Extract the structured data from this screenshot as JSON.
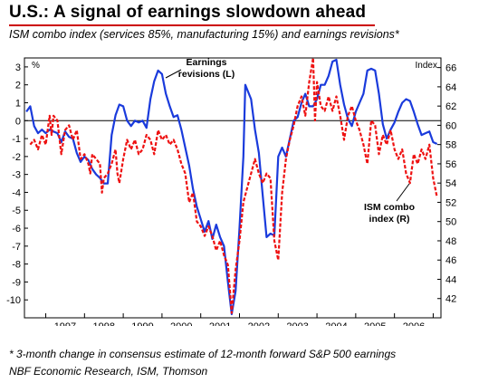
{
  "header": {
    "title": "U.S.: A signal of earnings slowdown ahead",
    "subtitle": "ISM combo index (services 85%, manufacturing 15%) and earnings revisions*"
  },
  "footer": {
    "footnote": "* 3-month change in consensus estimate of 12-month forward S&P 500 earnings",
    "source": "NBF Economic Research, ISM, Thomson"
  },
  "chart_data": {
    "type": "line",
    "left_unit": "%",
    "right_unit": "Index",
    "x_ticks": [
      "1997",
      "1998",
      "1999",
      "2000",
      "2001",
      "2002",
      "2003",
      "2004",
      "2005",
      "2006"
    ],
    "y_left": {
      "min": -11,
      "max": 3.5,
      "ticks": [
        "3",
        "2",
        "1",
        "0",
        "-1",
        "-2",
        "-3",
        "-4",
        "-5",
        "-6",
        "-7",
        "-8",
        "-9",
        "-10"
      ]
    },
    "y_right": {
      "min": 40,
      "max": 67,
      "ticks": [
        "66",
        "64",
        "62",
        "60",
        "58",
        "56",
        "54",
        "52",
        "50",
        "48",
        "46",
        "44",
        "42"
      ]
    },
    "grid": false,
    "annotations": [
      {
        "text": [
          "Earnings",
          "revisions (L)"
        ],
        "series": 0
      },
      {
        "text": [
          "ISM combo",
          "index (R)"
        ],
        "series": 1
      }
    ],
    "series": [
      {
        "name": "Earnings revisions (L)",
        "axis": "left",
        "color": "#1a3bdc",
        "style": "solid",
        "points": [
          [
            1996.5,
            0.5
          ],
          [
            1996.6,
            0.8
          ],
          [
            1996.7,
            -0.3
          ],
          [
            1996.8,
            -0.7
          ],
          [
            1996.9,
            -0.5
          ],
          [
            1997.0,
            -0.7
          ],
          [
            1997.1,
            -0.5
          ],
          [
            1997.2,
            -0.6
          ],
          [
            1997.3,
            -0.7
          ],
          [
            1997.4,
            -1.2
          ],
          [
            1997.5,
            -0.6
          ],
          [
            1997.6,
            -0.9
          ],
          [
            1997.7,
            -1.0
          ],
          [
            1997.8,
            -1.8
          ],
          [
            1997.9,
            -2.3
          ],
          [
            1998.0,
            -2.0
          ],
          [
            1998.1,
            -2.2
          ],
          [
            1998.2,
            -2.7
          ],
          [
            1998.3,
            -3.0
          ],
          [
            1998.4,
            -3.2
          ],
          [
            1998.5,
            -3.5
          ],
          [
            1998.6,
            -3.5
          ],
          [
            1998.7,
            -0.8
          ],
          [
            1998.8,
            0.3
          ],
          [
            1998.9,
            0.9
          ],
          [
            1999.0,
            0.8
          ],
          [
            1999.1,
            0.0
          ],
          [
            1999.2,
            -0.3
          ],
          [
            1999.3,
            0.0
          ],
          [
            1999.4,
            -0.1
          ],
          [
            1999.5,
            0.0
          ],
          [
            1999.6,
            -0.4
          ],
          [
            1999.7,
            1.2
          ],
          [
            1999.8,
            2.2
          ],
          [
            1999.9,
            2.8
          ],
          [
            2000.0,
            2.6
          ],
          [
            2000.1,
            1.5
          ],
          [
            2000.2,
            0.8
          ],
          [
            2000.3,
            0.2
          ],
          [
            2000.4,
            0.3
          ],
          [
            2000.5,
            -0.5
          ],
          [
            2000.6,
            -1.5
          ],
          [
            2000.7,
            -2.5
          ],
          [
            2000.8,
            -3.8
          ],
          [
            2000.9,
            -4.8
          ],
          [
            2001.0,
            -5.5
          ],
          [
            2001.1,
            -6.2
          ],
          [
            2001.2,
            -5.6
          ],
          [
            2001.3,
            -6.6
          ],
          [
            2001.4,
            -5.8
          ],
          [
            2001.5,
            -6.5
          ],
          [
            2001.6,
            -7.0
          ],
          [
            2001.7,
            -9.0
          ],
          [
            2001.8,
            -10.8
          ],
          [
            2001.9,
            -9.5
          ],
          [
            2002.0,
            -6.0
          ],
          [
            2002.1,
            -2.0
          ],
          [
            2002.15,
            2.0
          ],
          [
            2002.3,
            1.2
          ],
          [
            2002.4,
            -0.5
          ],
          [
            2002.5,
            -1.8
          ],
          [
            2002.6,
            -4.2
          ],
          [
            2002.7,
            -6.5
          ],
          [
            2002.8,
            -6.3
          ],
          [
            2002.9,
            -6.4
          ],
          [
            2003.0,
            -2.0
          ],
          [
            2003.1,
            -1.5
          ],
          [
            2003.2,
            -2.0
          ],
          [
            2003.3,
            -1.0
          ],
          [
            2003.4,
            0.0
          ],
          [
            2003.5,
            0.2
          ],
          [
            2003.6,
            1.0
          ],
          [
            2003.7,
            1.5
          ],
          [
            2003.8,
            0.8
          ],
          [
            2003.9,
            0.8
          ],
          [
            2004.0,
            1.2
          ],
          [
            2004.1,
            2.0
          ],
          [
            2004.2,
            2.0
          ],
          [
            2004.3,
            2.5
          ],
          [
            2004.4,
            3.3
          ],
          [
            2004.5,
            3.4
          ],
          [
            2004.6,
            2.0
          ],
          [
            2004.7,
            0.9
          ],
          [
            2004.8,
            0.1
          ],
          [
            2004.9,
            -0.3
          ],
          [
            2005.0,
            0.5
          ],
          [
            2005.1,
            1.0
          ],
          [
            2005.2,
            1.5
          ],
          [
            2005.3,
            2.8
          ],
          [
            2005.4,
            2.9
          ],
          [
            2005.5,
            2.8
          ],
          [
            2005.6,
            1.5
          ],
          [
            2005.7,
            -0.2
          ],
          [
            2005.8,
            -1.0
          ],
          [
            2005.9,
            -0.5
          ],
          [
            2006.0,
            -0.1
          ],
          [
            2006.1,
            0.5
          ],
          [
            2006.2,
            1.0
          ],
          [
            2006.3,
            1.2
          ],
          [
            2006.4,
            1.1
          ],
          [
            2006.5,
            0.5
          ],
          [
            2006.6,
            -0.2
          ],
          [
            2006.7,
            -0.8
          ],
          [
            2006.8,
            -0.7
          ],
          [
            2006.9,
            -0.6
          ],
          [
            2007.0,
            -1.2
          ],
          [
            2007.1,
            -1.3
          ]
        ]
      },
      {
        "name": "ISM combo index (R)",
        "axis": "right",
        "color": "#ee1111",
        "style": "dashed",
        "points": [
          [
            1996.6,
            58.0
          ],
          [
            1996.7,
            58.5
          ],
          [
            1996.8,
            57.5
          ],
          [
            1996.9,
            59.0
          ],
          [
            1997.0,
            58.0
          ],
          [
            1997.1,
            61.0
          ],
          [
            1997.15,
            59.0
          ],
          [
            1997.2,
            61.0
          ],
          [
            1997.3,
            60.5
          ],
          [
            1997.4,
            57.0
          ],
          [
            1997.5,
            59.5
          ],
          [
            1997.6,
            60.0
          ],
          [
            1997.7,
            58.5
          ],
          [
            1997.8,
            59.5
          ],
          [
            1997.9,
            56.5
          ],
          [
            1998.0,
            57.0
          ],
          [
            1998.1,
            56.0
          ],
          [
            1998.15,
            55.0
          ],
          [
            1998.2,
            57.0
          ],
          [
            1998.3,
            56.5
          ],
          [
            1998.4,
            56.0
          ],
          [
            1998.45,
            53.0
          ],
          [
            1998.5,
            54.5
          ],
          [
            1998.6,
            55.0
          ],
          [
            1998.7,
            56.0
          ],
          [
            1998.8,
            57.5
          ],
          [
            1998.85,
            55.0
          ],
          [
            1998.9,
            54.0
          ],
          [
            1999.0,
            56.5
          ],
          [
            1999.1,
            58.5
          ],
          [
            1999.2,
            57.5
          ],
          [
            1999.3,
            58.5
          ],
          [
            1999.4,
            57.0
          ],
          [
            1999.5,
            57.5
          ],
          [
            1999.6,
            59.0
          ],
          [
            1999.7,
            58.5
          ],
          [
            1999.8,
            57.0
          ],
          [
            1999.9,
            59.5
          ],
          [
            2000.0,
            58.5
          ],
          [
            2000.1,
            59.0
          ],
          [
            2000.2,
            58.0
          ],
          [
            2000.3,
            58.5
          ],
          [
            2000.4,
            57.5
          ],
          [
            2000.5,
            56.0
          ],
          [
            2000.6,
            55.0
          ],
          [
            2000.7,
            52.0
          ],
          [
            2000.8,
            53.0
          ],
          [
            2000.9,
            50.0
          ],
          [
            2001.0,
            49.5
          ],
          [
            2001.1,
            48.5
          ],
          [
            2001.2,
            49.5
          ],
          [
            2001.3,
            48.5
          ],
          [
            2001.4,
            47.0
          ],
          [
            2001.5,
            48.0
          ],
          [
            2001.6,
            46.5
          ],
          [
            2001.7,
            45.5
          ],
          [
            2001.8,
            40.5
          ],
          [
            2001.9,
            45.0
          ],
          [
            2002.0,
            48.0
          ],
          [
            2002.1,
            52.0
          ],
          [
            2002.2,
            53.5
          ],
          [
            2002.3,
            55.0
          ],
          [
            2002.4,
            56.5
          ],
          [
            2002.5,
            55.0
          ],
          [
            2002.6,
            54.0
          ],
          [
            2002.7,
            55.0
          ],
          [
            2002.8,
            54.5
          ],
          [
            2002.9,
            48.0
          ],
          [
            2003.0,
            46.0
          ],
          [
            2003.1,
            53.0
          ],
          [
            2003.2,
            56.5
          ],
          [
            2003.3,
            58.5
          ],
          [
            2003.4,
            60.0
          ],
          [
            2003.5,
            62.0
          ],
          [
            2003.6,
            63.0
          ],
          [
            2003.7,
            61.0
          ],
          [
            2003.8,
            64.5
          ],
          [
            2003.9,
            67.0
          ],
          [
            2003.95,
            60.5
          ],
          [
            2004.0,
            64.5
          ],
          [
            2004.1,
            62.0
          ],
          [
            2004.2,
            61.5
          ],
          [
            2004.3,
            63.0
          ],
          [
            2004.4,
            61.5
          ],
          [
            2004.5,
            63.0
          ],
          [
            2004.6,
            61.0
          ],
          [
            2004.7,
            58.5
          ],
          [
            2004.8,
            61.0
          ],
          [
            2004.9,
            62.0
          ],
          [
            2005.0,
            60.5
          ],
          [
            2005.1,
            59.5
          ],
          [
            2005.2,
            58.0
          ],
          [
            2005.3,
            56.0
          ],
          [
            2005.4,
            60.5
          ],
          [
            2005.5,
            60.0
          ],
          [
            2005.6,
            57.0
          ],
          [
            2005.7,
            59.0
          ],
          [
            2005.8,
            58.0
          ],
          [
            2005.9,
            59.5
          ],
          [
            2006.0,
            57.5
          ],
          [
            2006.1,
            56.5
          ],
          [
            2006.2,
            57.5
          ],
          [
            2006.3,
            55.0
          ],
          [
            2006.4,
            54.0
          ],
          [
            2006.5,
            57.0
          ],
          [
            2006.6,
            56.0
          ],
          [
            2006.7,
            57.5
          ],
          [
            2006.8,
            56.5
          ],
          [
            2006.9,
            58.0
          ],
          [
            2007.0,
            54.5
          ],
          [
            2007.1,
            52.5
          ]
        ]
      }
    ]
  }
}
